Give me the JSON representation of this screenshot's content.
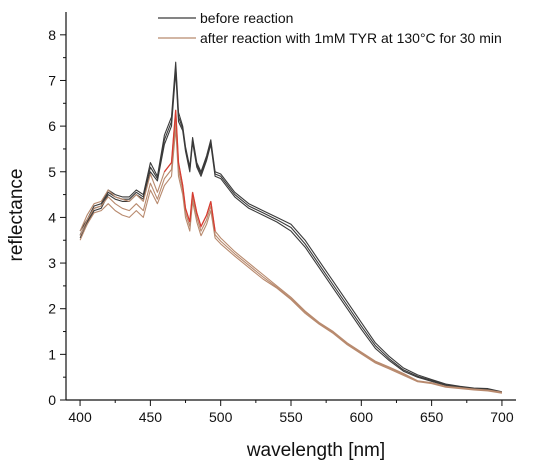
{
  "chart_data": {
    "type": "line",
    "title": "",
    "xlabel": "wavelength [nm]",
    "ylabel": "reflectance",
    "xlim": [
      390,
      710
    ],
    "ylim": [
      0,
      8.5
    ],
    "xticks": [
      400,
      450,
      500,
      550,
      600,
      650,
      700
    ],
    "yticks": [
      0,
      1,
      2,
      3,
      4,
      5,
      6,
      7,
      8
    ],
    "grid": false,
    "legend_position": "top",
    "series": [
      {
        "name": "before reaction",
        "color": "#3a3a3a",
        "replicates": [
          {
            "x": [
              400,
              405,
              410,
              415,
              420,
              425,
              430,
              435,
              440,
              445,
              450,
              455,
              460,
              465,
              468,
              470,
              473,
              475,
              478,
              480,
              483,
              486,
              490,
              493,
              496,
              500,
              510,
              520,
              530,
              540,
              550,
              560,
              570,
              580,
              590,
              600,
              610,
              620,
              630,
              640,
              650,
              660,
              670,
              680,
              690,
              700
            ],
            "y": [
              3.7,
              3.95,
              4.25,
              4.3,
              4.6,
              4.5,
              4.45,
              4.45,
              4.6,
              4.5,
              5.2,
              4.9,
              5.8,
              6.2,
              7.4,
              6.3,
              6.0,
              5.55,
              5.1,
              5.75,
              5.2,
              5.0,
              5.35,
              5.7,
              5.0,
              4.95,
              4.55,
              4.3,
              4.15,
              4.0,
              3.85,
              3.5,
              3.05,
              2.6,
              2.15,
              1.7,
              1.25,
              0.95,
              0.7,
              0.55,
              0.45,
              0.35,
              0.3,
              0.26,
              0.25,
              0.18
            ]
          },
          {
            "x": [
              400,
              405,
              410,
              415,
              420,
              425,
              430,
              435,
              440,
              445,
              450,
              455,
              460,
              465,
              468,
              470,
              473,
              475,
              478,
              480,
              483,
              486,
              490,
              493,
              496,
              500,
              510,
              520,
              530,
              540,
              550,
              560,
              570,
              580,
              590,
              600,
              610,
              620,
              630,
              640,
              650,
              660,
              670,
              680,
              690,
              700
            ],
            "y": [
              3.62,
              3.9,
              4.2,
              4.25,
              4.55,
              4.45,
              4.4,
              4.4,
              4.55,
              4.45,
              5.1,
              4.85,
              5.7,
              6.1,
              7.3,
              6.2,
              5.95,
              5.5,
              5.05,
              5.7,
              5.15,
              4.95,
              5.3,
              5.65,
              4.95,
              4.9,
              4.5,
              4.25,
              4.1,
              3.95,
              3.78,
              3.42,
              2.97,
              2.52,
              2.07,
              1.62,
              1.19,
              0.9,
              0.66,
              0.52,
              0.43,
              0.33,
              0.29,
              0.25,
              0.24,
              0.17
            ]
          },
          {
            "x": [
              400,
              405,
              410,
              415,
              420,
              425,
              430,
              435,
              440,
              445,
              450,
              455,
              460,
              465,
              468,
              470,
              473,
              475,
              478,
              480,
              483,
              486,
              490,
              493,
              496,
              500,
              510,
              520,
              530,
              540,
              550,
              560,
              570,
              580,
              590,
              600,
              610,
              620,
              630,
              640,
              650,
              660,
              670,
              680,
              690,
              700
            ],
            "y": [
              3.55,
              3.85,
              4.15,
              4.2,
              4.5,
              4.4,
              4.35,
              4.35,
              4.5,
              4.4,
              5.0,
              4.8,
              5.6,
              6.0,
              7.2,
              6.1,
              5.9,
              5.45,
              5.0,
              5.65,
              5.1,
              4.9,
              5.25,
              5.6,
              4.9,
              4.85,
              4.45,
              4.2,
              4.05,
              3.9,
              3.7,
              3.35,
              2.9,
              2.45,
              2.0,
              1.55,
              1.13,
              0.86,
              0.63,
              0.5,
              0.41,
              0.32,
              0.28,
              0.24,
              0.23,
              0.16
            ]
          }
        ]
      },
      {
        "name": "after reaction with 1mM TYR at 130°C for 30 min",
        "color": "#b88a6e",
        "highlight_color": "#e0201c",
        "replicates": [
          {
            "x": [
              400,
              405,
              410,
              415,
              420,
              425,
              430,
              435,
              440,
              445,
              450,
              455,
              460,
              465,
              468,
              470,
              473,
              475,
              478,
              480,
              483,
              486,
              490,
              493,
              496,
              500,
              510,
              520,
              530,
              540,
              550,
              560,
              570,
              580,
              590,
              600,
              610,
              620,
              630,
              640,
              650,
              660,
              670,
              680,
              690,
              700
            ],
            "y": [
              3.7,
              4.05,
              4.3,
              4.35,
              4.6,
              4.45,
              4.4,
              4.35,
              4.5,
              4.35,
              4.95,
              4.55,
              5.0,
              5.2,
              6.35,
              5.2,
              4.7,
              4.2,
              3.9,
              4.55,
              4.1,
              3.8,
              4.05,
              4.35,
              3.7,
              3.55,
              3.25,
              3.0,
              2.75,
              2.5,
              2.25,
              1.95,
              1.7,
              1.5,
              1.25,
              1.05,
              0.85,
              0.72,
              0.58,
              0.42,
              0.38,
              0.3,
              0.27,
              0.24,
              0.22,
              0.17
            ]
          },
          {
            "x": [
              400,
              405,
              410,
              415,
              420,
              425,
              430,
              435,
              440,
              445,
              450,
              455,
              460,
              465,
              468,
              470,
              473,
              475,
              478,
              480,
              483,
              486,
              490,
              493,
              496,
              500,
              510,
              520,
              530,
              540,
              550,
              560,
              570,
              580,
              590,
              600,
              610,
              620,
              630,
              640,
              650,
              660,
              670,
              680,
              690,
              700
            ],
            "y": [
              3.6,
              3.95,
              4.2,
              4.25,
              4.45,
              4.3,
              4.2,
              4.15,
              4.3,
              4.15,
              4.75,
              4.4,
              4.85,
              5.05,
              6.15,
              5.05,
              4.6,
              4.1,
              3.8,
              4.45,
              4.0,
              3.7,
              3.95,
              4.25,
              3.62,
              3.48,
              3.2,
              2.95,
              2.7,
              2.47,
              2.22,
              1.93,
              1.68,
              1.48,
              1.23,
              1.03,
              0.83,
              0.7,
              0.56,
              0.41,
              0.37,
              0.29,
              0.26,
              0.23,
              0.21,
              0.16
            ]
          },
          {
            "x": [
              400,
              405,
              410,
              415,
              420,
              425,
              430,
              435,
              440,
              445,
              450,
              455,
              460,
              465,
              468,
              470,
              473,
              475,
              478,
              480,
              483,
              486,
              490,
              493,
              496,
              500,
              510,
              520,
              530,
              540,
              550,
              560,
              570,
              580,
              590,
              600,
              610,
              620,
              630,
              640,
              650,
              660,
              670,
              680,
              690,
              700
            ],
            "y": [
              3.5,
              3.85,
              4.1,
              4.15,
              4.3,
              4.15,
              4.05,
              4.0,
              4.15,
              4.0,
              4.6,
              4.3,
              4.7,
              4.9,
              5.95,
              4.9,
              4.5,
              4.0,
              3.7,
              4.35,
              3.9,
              3.6,
              3.85,
              4.15,
              3.55,
              3.42,
              3.15,
              2.9,
              2.65,
              2.45,
              2.2,
              1.9,
              1.66,
              1.46,
              1.21,
              1.01,
              0.81,
              0.68,
              0.54,
              0.4,
              0.36,
              0.28,
              0.25,
              0.22,
              0.2,
              0.15
            ]
          }
        ]
      }
    ]
  }
}
